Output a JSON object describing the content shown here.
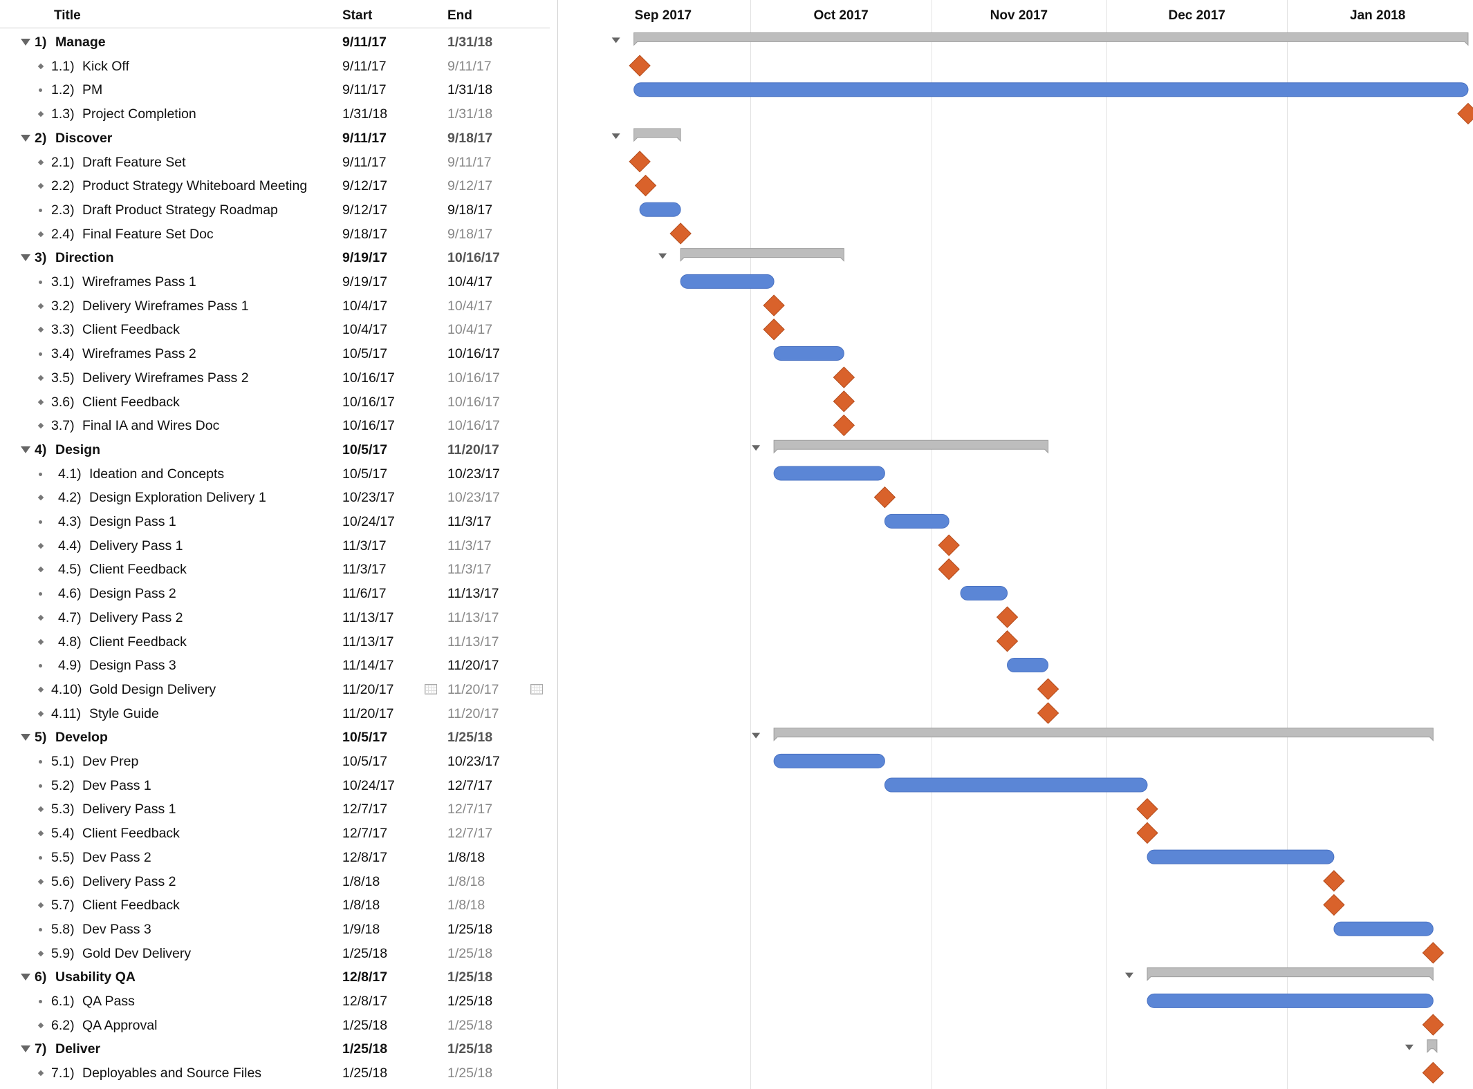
{
  "columns": {
    "title": "Title",
    "start": "Start",
    "end": "End"
  },
  "months": [
    "Sep 2017",
    "Oct 2017",
    "Nov 2017",
    "Dec 2017",
    "Jan 2018"
  ],
  "colors": {
    "task_bar": "#5b86d6",
    "summary_bar": "#bdbdbd",
    "milestone": "#d9622b",
    "connector": "#9a9a9a"
  },
  "tasks": [
    {
      "num": "1)",
      "title": "Manage",
      "start": "9/11/17",
      "end": "1/31/18",
      "type": "group"
    },
    {
      "num": "1.1)",
      "title": "Kick Off",
      "start": "9/11/17",
      "end": "9/11/17",
      "type": "milestone"
    },
    {
      "num": "1.2)",
      "title": "PM",
      "start": "9/11/17",
      "end": "1/31/18",
      "type": "task"
    },
    {
      "num": "1.3)",
      "title": "Project Completion",
      "start": "1/31/18",
      "end": "1/31/18",
      "type": "milestone"
    },
    {
      "num": "2)",
      "title": "Discover",
      "start": "9/11/17",
      "end": "9/18/17",
      "type": "group"
    },
    {
      "num": "2.1)",
      "title": "Draft Feature Set",
      "start": "9/11/17",
      "end": "9/11/17",
      "type": "milestone"
    },
    {
      "num": "2.2)",
      "title": "Product Strategy Whiteboard Meeting",
      "start": "9/12/17",
      "end": "9/12/17",
      "type": "milestone"
    },
    {
      "num": "2.3)",
      "title": "Draft Product Strategy Roadmap",
      "start": "9/12/17",
      "end": "9/18/17",
      "type": "task"
    },
    {
      "num": "2.4)",
      "title": "Final Feature Set Doc",
      "start": "9/18/17",
      "end": "9/18/17",
      "type": "milestone"
    },
    {
      "num": "3)",
      "title": "Direction",
      "start": "9/19/17",
      "end": "10/16/17",
      "type": "group"
    },
    {
      "num": "3.1)",
      "title": "Wireframes Pass 1",
      "start": "9/19/17",
      "end": "10/4/17",
      "type": "task"
    },
    {
      "num": "3.2)",
      "title": "Delivery Wireframes Pass 1",
      "start": "10/4/17",
      "end": "10/4/17",
      "type": "milestone"
    },
    {
      "num": "3.3)",
      "title": "Client Feedback",
      "start": "10/4/17",
      "end": "10/4/17",
      "type": "milestone"
    },
    {
      "num": "3.4)",
      "title": "Wireframes Pass 2",
      "start": "10/5/17",
      "end": "10/16/17",
      "type": "task"
    },
    {
      "num": "3.5)",
      "title": "Delivery Wireframes Pass 2",
      "start": "10/16/17",
      "end": "10/16/17",
      "type": "milestone"
    },
    {
      "num": "3.6)",
      "title": "Client Feedback",
      "start": "10/16/17",
      "end": "10/16/17",
      "type": "milestone"
    },
    {
      "num": "3.7)",
      "title": "Final IA and Wires Doc",
      "start": "10/16/17",
      "end": "10/16/17",
      "type": "milestone"
    },
    {
      "num": "4)",
      "title": "Design",
      "start": "10/5/17",
      "end": "11/20/17",
      "type": "group"
    },
    {
      "num": "4.1)",
      "title": "Ideation and Concepts",
      "start": "10/5/17",
      "end": "10/23/17",
      "type": "task"
    },
    {
      "num": "4.2)",
      "title": "Design Exploration Delivery 1",
      "start": "10/23/17",
      "end": "10/23/17",
      "type": "milestone"
    },
    {
      "num": "4.3)",
      "title": "Design Pass 1",
      "start": "10/24/17",
      "end": "11/3/17",
      "type": "task"
    },
    {
      "num": "4.4)",
      "title": "Delivery Pass 1",
      "start": "11/3/17",
      "end": "11/3/17",
      "type": "milestone"
    },
    {
      "num": "4.5)",
      "title": "Client Feedback",
      "start": "11/3/17",
      "end": "11/3/17",
      "type": "milestone"
    },
    {
      "num": "4.6)",
      "title": "Design Pass 2",
      "start": "11/6/17",
      "end": "11/13/17",
      "type": "task"
    },
    {
      "num": "4.7)",
      "title": "Delivery Pass 2",
      "start": "11/13/17",
      "end": "11/13/17",
      "type": "milestone"
    },
    {
      "num": "4.8)",
      "title": "Client Feedback",
      "start": "11/13/17",
      "end": "11/13/17",
      "type": "milestone"
    },
    {
      "num": "4.9)",
      "title": "Design Pass 3",
      "start": "11/14/17",
      "end": "11/20/17",
      "type": "task"
    },
    {
      "num": "4.10)",
      "title": "Gold Design Delivery",
      "start": "11/20/17",
      "end": "11/20/17",
      "type": "milestone",
      "calendar": true
    },
    {
      "num": "4.11)",
      "title": "Style Guide",
      "start": "11/20/17",
      "end": "11/20/17",
      "type": "milestone"
    },
    {
      "num": "5)",
      "title": "Develop",
      "start": "10/5/17",
      "end": "1/25/18",
      "type": "group"
    },
    {
      "num": "5.1)",
      "title": "Dev Prep",
      "start": "10/5/17",
      "end": "10/23/17",
      "type": "task"
    },
    {
      "num": "5.2)",
      "title": "Dev Pass 1",
      "start": "10/24/17",
      "end": "12/7/17",
      "type": "task"
    },
    {
      "num": "5.3)",
      "title": "Delivery Pass 1",
      "start": "12/7/17",
      "end": "12/7/17",
      "type": "milestone"
    },
    {
      "num": "5.4)",
      "title": "Client Feedback",
      "start": "12/7/17",
      "end": "12/7/17",
      "type": "milestone"
    },
    {
      "num": "5.5)",
      "title": "Dev Pass 2",
      "start": "12/8/17",
      "end": "1/8/18",
      "type": "task"
    },
    {
      "num": "5.6)",
      "title": "Delivery Pass 2",
      "start": "1/8/18",
      "end": "1/8/18",
      "type": "milestone"
    },
    {
      "num": "5.7)",
      "title": "Client Feedback",
      "start": "1/8/18",
      "end": "1/8/18",
      "type": "milestone"
    },
    {
      "num": "5.8)",
      "title": "Dev Pass 3",
      "start": "1/9/18",
      "end": "1/25/18",
      "type": "task"
    },
    {
      "num": "5.9)",
      "title": "Gold Dev Delivery",
      "start": "1/25/18",
      "end": "1/25/18",
      "type": "milestone"
    },
    {
      "num": "6)",
      "title": "Usability QA",
      "start": "12/8/17",
      "end": "1/25/18",
      "type": "group"
    },
    {
      "num": "6.1)",
      "title": "QA Pass",
      "start": "12/8/17",
      "end": "1/25/18",
      "type": "task"
    },
    {
      "num": "6.2)",
      "title": "QA Approval",
      "start": "1/25/18",
      "end": "1/25/18",
      "type": "milestone"
    },
    {
      "num": "7)",
      "title": "Deliver",
      "start": "1/25/18",
      "end": "1/25/18",
      "type": "group"
    },
    {
      "num": "7.1)",
      "title": "Deployables and Source Files",
      "start": "1/25/18",
      "end": "1/25/18",
      "type": "milestone"
    }
  ]
}
